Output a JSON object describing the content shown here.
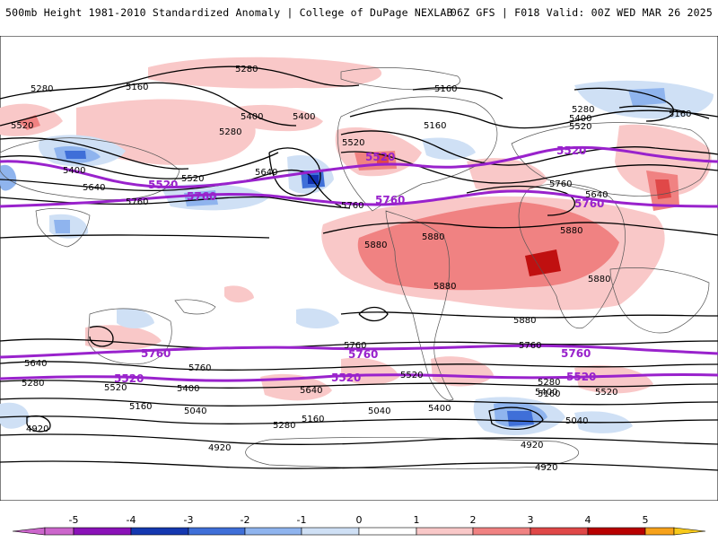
{
  "header": {
    "title_left": "500mb Height 1981-2010 Standardized Anomaly | College of DuPage NEXLAB",
    "title_right": "06Z GFS | F018 Valid: 00Z WED MAR 26 2025"
  },
  "colors": {
    "thick_contour": "#9922cc",
    "contour": "#000000",
    "anom_pos_1": "#f9c8c8",
    "anom_pos_2": "#f08282",
    "anom_pos_3": "#e04848",
    "anom_pos_4": "#c01010",
    "anom_neg_1": "#cfe0f5",
    "anom_neg_2": "#8fb4ee",
    "anom_neg_3": "#3f6fd8",
    "anom_neg_4": "#1030b0"
  },
  "contour_labels": [
    "5280",
    "5280",
    "5160",
    "5520",
    "5400",
    "5400",
    "5280",
    "5400",
    "5640",
    "5520",
    "5760",
    "5160",
    "5520",
    "5160",
    "5280",
    "5160",
    "5400",
    "5520",
    "5640",
    "5760",
    "5640",
    "5760",
    "5880",
    "5880",
    "5880",
    "5880",
    "5880",
    "5880",
    "5760",
    "5760",
    "5640",
    "5520",
    "5400",
    "5280",
    "5160",
    "5040",
    "4920",
    "4920",
    "5160",
    "5040",
    "5280",
    "5400",
    "5520",
    "5640",
    "5760",
    "5520",
    "5400",
    "5280",
    "5160",
    "5040",
    "4920",
    "4920"
  ],
  "thick_contour_labels": [
    "5520",
    "5760",
    "5520",
    "5760",
    "5520",
    "5760",
    "5760",
    "5760",
    "5520",
    "5520",
    "5520",
    "5760"
  ],
  "colorbar": {
    "ticks": [
      "-5",
      "-4",
      "-3",
      "-2",
      "-1",
      "0",
      "1",
      "2",
      "3",
      "4",
      "5"
    ],
    "colors": [
      "#cc66cc",
      "#8a12b8",
      "#1438b0",
      "#3f6fd8",
      "#8fb4ee",
      "#cfe0f5",
      "#ffffff",
      "#f9c8c8",
      "#f08282",
      "#e04848",
      "#b80000",
      "#f7a21b",
      "#f7c91b"
    ]
  }
}
